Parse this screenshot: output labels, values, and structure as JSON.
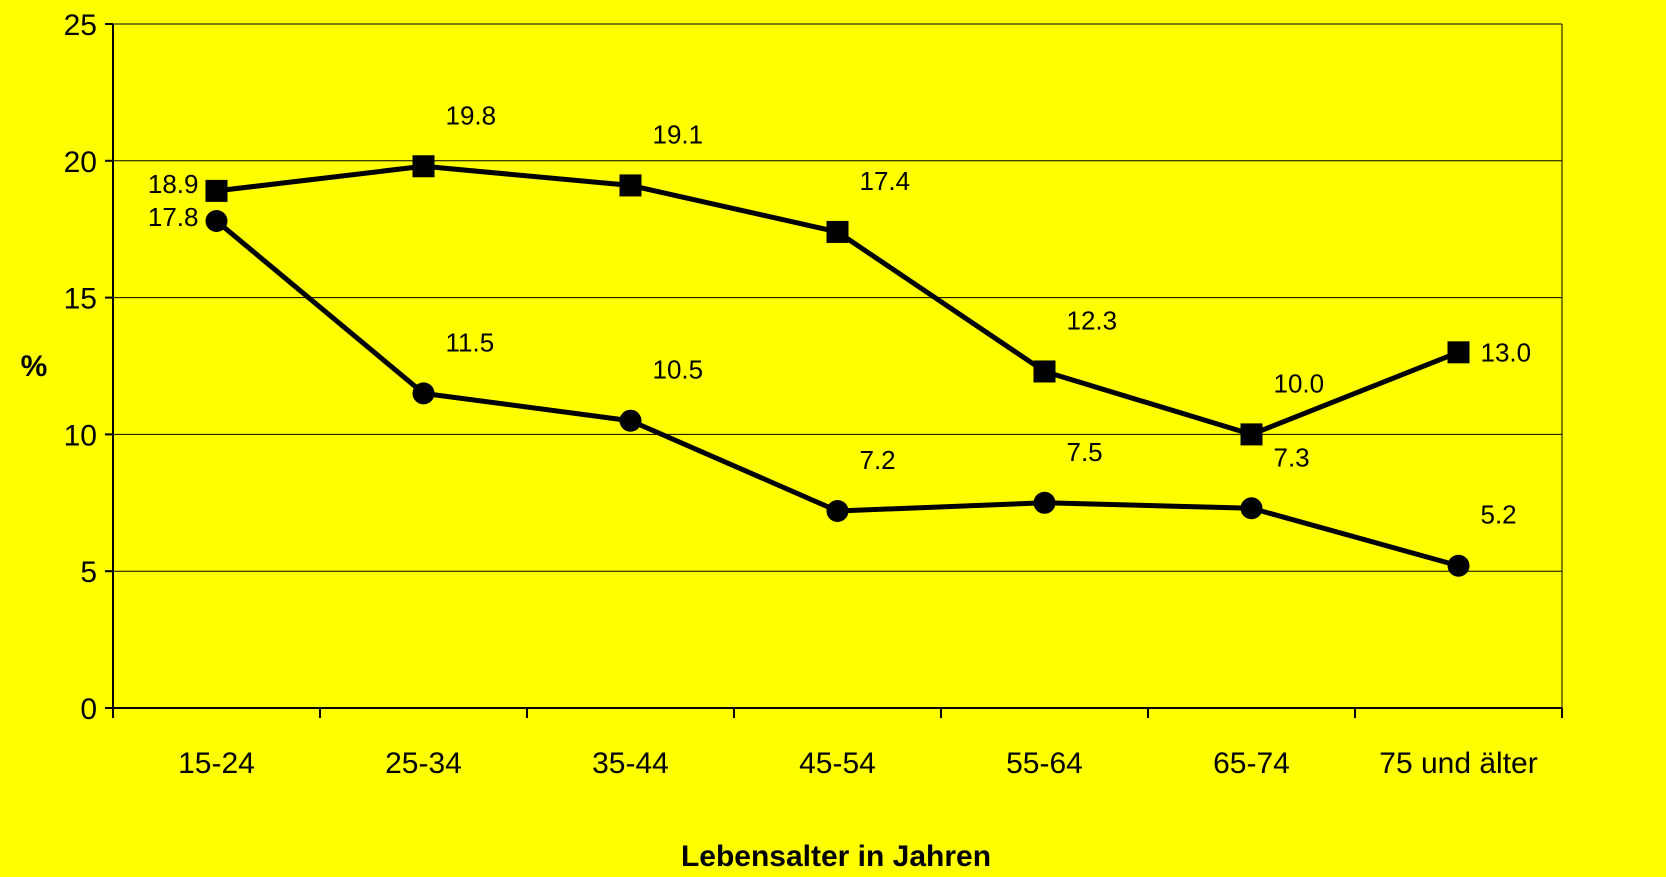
{
  "chart_data": {
    "type": "line",
    "title": "",
    "xlabel": "Lebensalter in Jahren",
    "ylabel": "%",
    "ylim": [
      0,
      25
    ],
    "yticks": [
      "0",
      "5",
      "10",
      "15",
      "20",
      "25"
    ],
    "grid": true,
    "categories": [
      "15-24",
      "25-34",
      "35-44",
      "45-54",
      "55-64",
      "65-74",
      "75 und älter"
    ],
    "series": [
      {
        "marker": "square",
        "values": [
          18.9,
          19.8,
          19.1,
          17.4,
          12.3,
          10.0,
          13.0
        ],
        "labels": [
          "18.9",
          "19.8",
          "19.1",
          "17.4",
          "12.3",
          "10.0",
          "13.0"
        ]
      },
      {
        "marker": "circle",
        "values": [
          17.8,
          11.5,
          10.5,
          7.2,
          7.5,
          7.3,
          5.2
        ],
        "labels": [
          "17.8",
          "11.5",
          "10.5",
          "7.2",
          "7.5",
          "7.3",
          "5.2"
        ]
      }
    ],
    "colors": {
      "background": "#ffff00",
      "line": "#000000"
    }
  }
}
